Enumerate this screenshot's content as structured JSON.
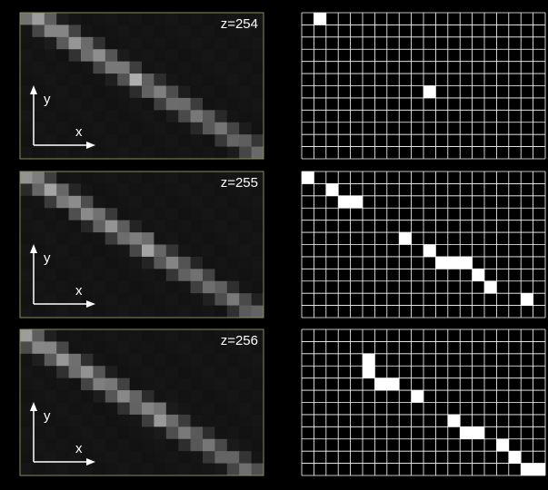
{
  "panels": [
    {
      "z_label": "z=254",
      "x_label": "x",
      "y_label": "y"
    },
    {
      "z_label": "z=255",
      "x_label": "x",
      "y_label": "y"
    },
    {
      "z_label": "z=256",
      "x_label": "x",
      "y_label": "y"
    }
  ]
}
